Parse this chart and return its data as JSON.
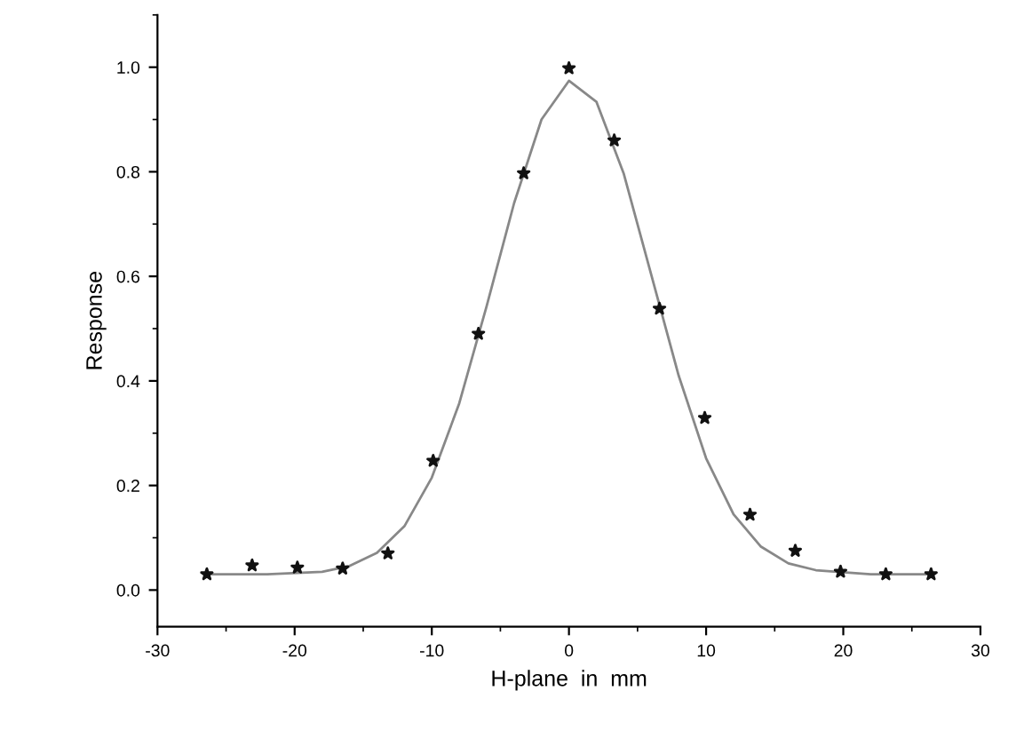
{
  "chart_data": {
    "type": "scatter",
    "xlabel": "H-plane  in  mm",
    "ylabel": "Response",
    "xlim": [
      -30,
      30
    ],
    "xticks": [
      -30,
      -20,
      -10,
      0,
      10,
      20,
      30
    ],
    "ylim": [
      -0.07,
      1.1
    ],
    "yticks": [
      {
        "value": 0,
        "label": "0.0"
      },
      {
        "value": 0.2,
        "label": "0.2"
      },
      {
        "value": 0.4,
        "label": "0.4"
      },
      {
        "value": 0.6,
        "label": "0.6"
      },
      {
        "value": 0.8,
        "label": "0.8"
      },
      {
        "value": 1.0,
        "label": "1.0"
      }
    ],
    "grid": false,
    "legend": false,
    "series": [
      {
        "color": "#111111",
        "marker": "star",
        "x": [
          -26.4,
          -23.1,
          -19.8,
          -16.5,
          -13.2,
          -9.9,
          -6.6,
          -3.3,
          0,
          3.3,
          6.6,
          9.9,
          13.2,
          16.5,
          19.8,
          23.1,
          26.4
        ],
        "values": [
          0.03,
          0.047,
          0.043,
          0.041,
          0.07,
          0.247,
          0.49,
          0.797,
          0.998,
          0.86,
          0.538,
          0.329,
          0.144,
          0.075,
          0.035,
          0.03,
          0.03
        ]
      },
      {
        "type": "line",
        "color": "#888888",
        "marker": "none",
        "line_style": "solid",
        "x": [
          -26,
          -22,
          -18,
          -16,
          -14,
          -12,
          -10,
          -8,
          -6,
          -4,
          -2,
          0,
          2,
          4,
          6,
          8,
          10,
          12,
          14,
          16,
          18,
          22,
          26
        ],
        "values": [
          0.03,
          0.03,
          0.035,
          0.046,
          0.071,
          0.122,
          0.215,
          0.357,
          0.543,
          0.74,
          0.9,
          0.974,
          0.934,
          0.796,
          0.603,
          0.41,
          0.252,
          0.145,
          0.083,
          0.051,
          0.038,
          0.03,
          0.03
        ]
      }
    ]
  }
}
